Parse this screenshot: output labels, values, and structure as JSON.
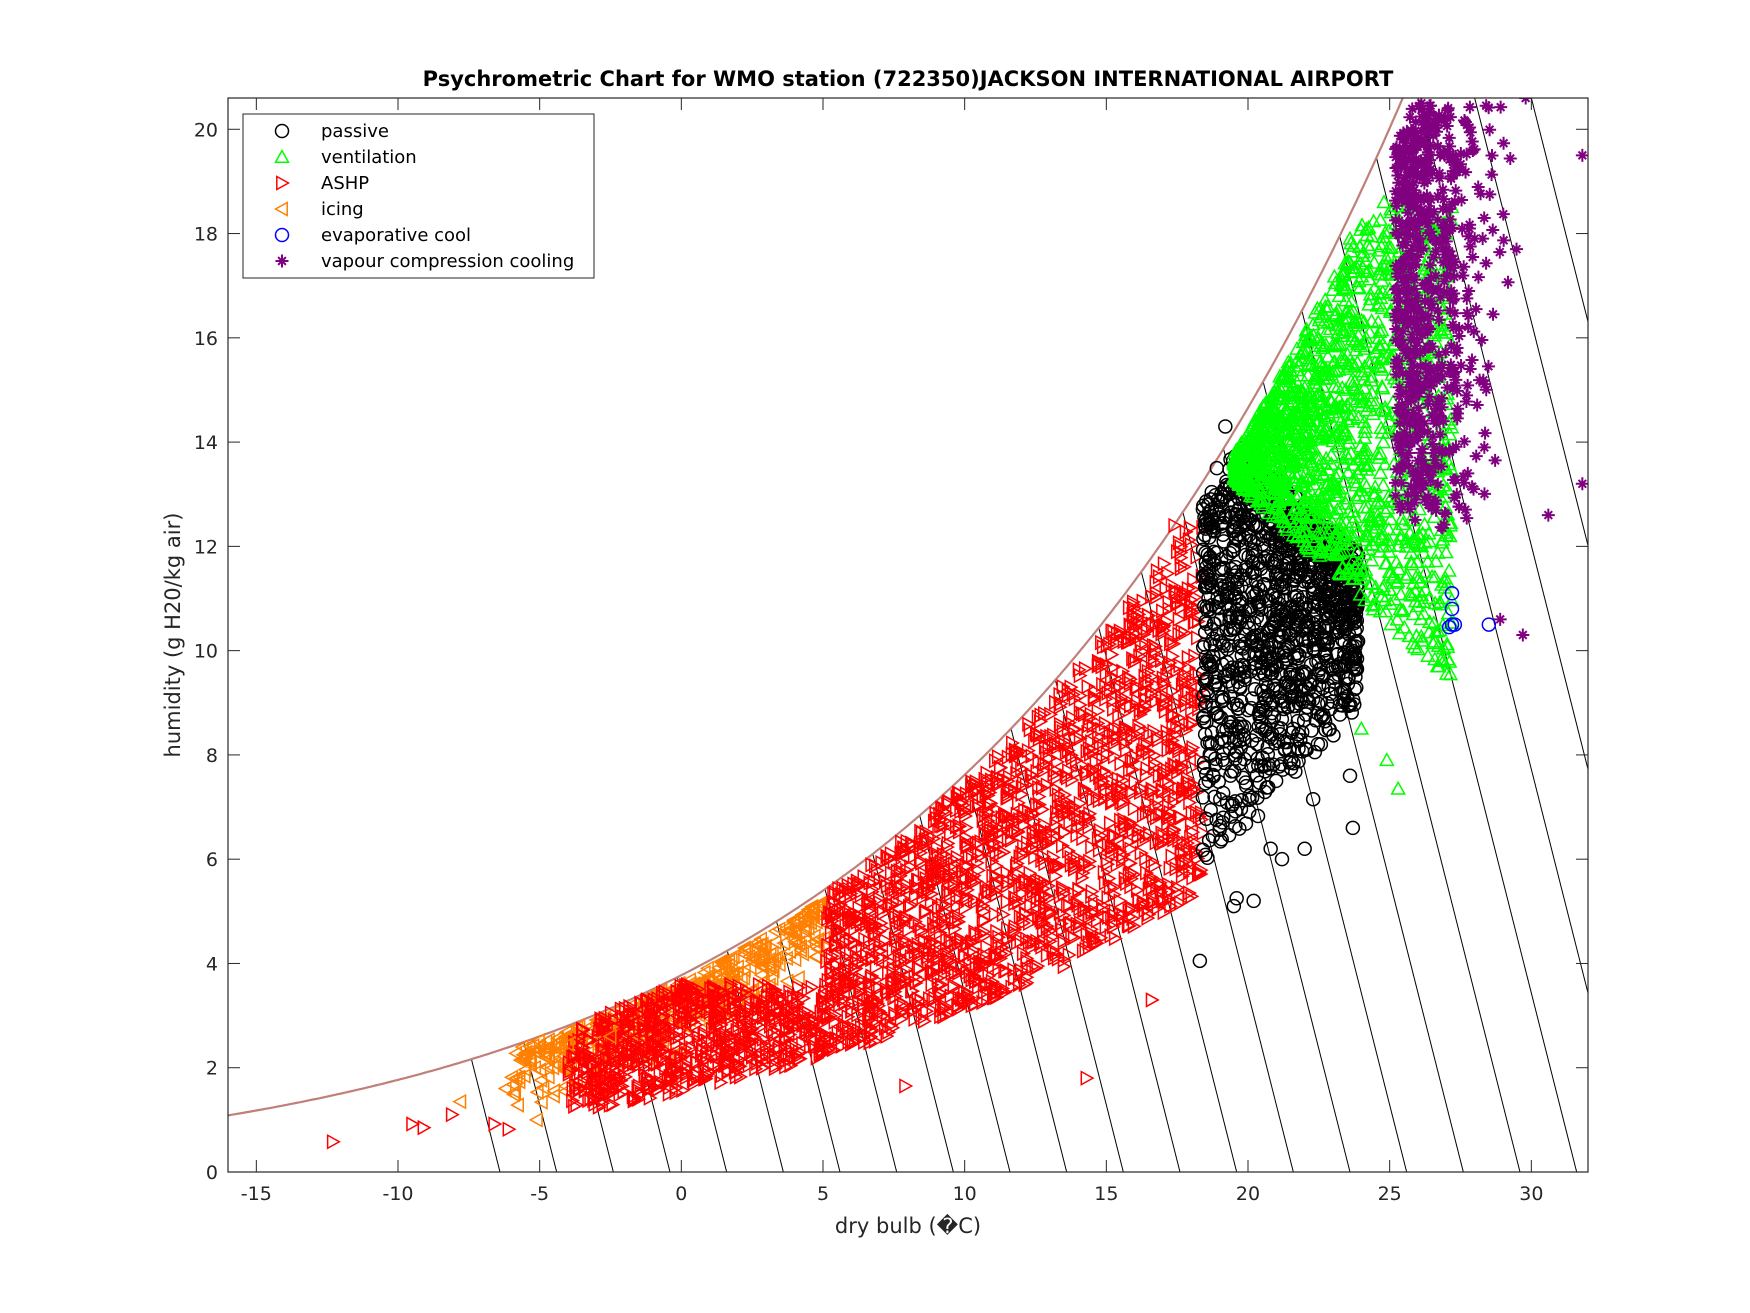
{
  "chart_data": {
    "type": "scatter",
    "title": "Psychrometric Chart for WMO station (722350)JACKSON INTERNATIONAL AIRPORT",
    "xlabel": "dry bulb (�C)",
    "ylabel": "humidity (g H20/kg air)",
    "xlim": [
      -16,
      32
    ],
    "ylim": [
      0,
      20.6
    ],
    "xticks": [
      -15,
      -10,
      -5,
      0,
      5,
      10,
      15,
      20,
      25,
      30
    ],
    "yticks": [
      0,
      2,
      4,
      6,
      8,
      10,
      12,
      14,
      16,
      18,
      20
    ],
    "legend_position": "top-left",
    "grid": false,
    "saturation_curve_color": "#c0807a",
    "series": [
      {
        "name": "passive",
        "marker": "circle",
        "color": "#000000",
        "region": {
          "x": [
            18.3,
            24.0
          ],
          "y": [
            4.0,
            14.3
          ]
        },
        "points": [
          [
            18.3,
            4.05
          ],
          [
            19.5,
            5.1
          ],
          [
            19.6,
            5.25
          ],
          [
            20.2,
            5.2
          ],
          [
            21.2,
            6.0
          ],
          [
            20.8,
            6.2
          ],
          [
            22.0,
            6.2
          ],
          [
            23.7,
            6.6
          ],
          [
            22.3,
            7.15
          ],
          [
            23.6,
            7.6
          ],
          [
            19.2,
            14.3
          ],
          [
            18.9,
            13.5
          ]
        ]
      },
      {
        "name": "ventilation",
        "marker": "triangle-up",
        "color": "#00ff00",
        "region": {
          "x": [
            19.3,
            27.2
          ],
          "y": [
            7.3,
            18.6
          ]
        },
        "points": [
          [
            25.3,
            7.35
          ],
          [
            24.9,
            7.9
          ],
          [
            24.0,
            8.5
          ],
          [
            26.9,
            9.8
          ],
          [
            24.8,
            18.6
          ],
          [
            23.6,
            17.9
          ]
        ]
      },
      {
        "name": "ASHP",
        "marker": "triangle-right",
        "color": "#ff0000",
        "region": {
          "x": [
            -12.5,
            18.4
          ],
          "y": [
            0.55,
            12.4
          ]
        },
        "points": [
          [
            -12.3,
            0.58
          ],
          [
            -9.5,
            0.92
          ],
          [
            -9.1,
            0.85
          ],
          [
            -8.1,
            1.1
          ],
          [
            -6.6,
            0.92
          ],
          [
            -6.1,
            0.82
          ],
          [
            14.3,
            1.8
          ],
          [
            16.6,
            3.3
          ],
          [
            17.4,
            12.4
          ],
          [
            7.9,
            1.65
          ]
        ]
      },
      {
        "name": "icing",
        "marker": "triangle-left",
        "color": "#ff8000",
        "region": {
          "x": [
            -8.0,
            5.1
          ],
          "y": [
            0.95,
            5.3
          ]
        },
        "points": [
          [
            -7.8,
            1.35
          ],
          [
            -6.2,
            1.6
          ],
          [
            -5.1,
            1.0
          ],
          [
            -4.0,
            2.45
          ],
          [
            -2.5,
            2.6
          ]
        ]
      },
      {
        "name": "evaporative cool",
        "marker": "circle",
        "color": "#0000ff",
        "points": [
          [
            27.2,
            10.5
          ],
          [
            27.2,
            10.8
          ],
          [
            27.2,
            11.1
          ],
          [
            27.3,
            10.5
          ],
          [
            27.1,
            10.45
          ],
          [
            28.5,
            10.5
          ]
        ]
      },
      {
        "name": "vapour compression cooling",
        "marker": "asterisk",
        "color": "#800080",
        "region": {
          "x": [
            25.0,
            32.0
          ],
          "y": [
            10.3,
            20.6
          ]
        },
        "points": [
          [
            29.7,
            10.3
          ],
          [
            28.9,
            10.6
          ],
          [
            31.8,
            13.2
          ],
          [
            31.8,
            19.5
          ],
          [
            29.8,
            20.6
          ],
          [
            30.6,
            12.6
          ]
        ]
      }
    ]
  }
}
